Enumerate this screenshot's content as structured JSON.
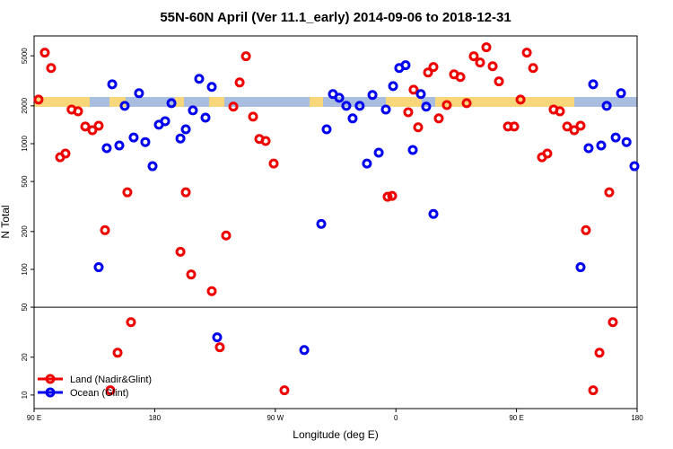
{
  "chart_data": {
    "type": "scatter",
    "title": "55N-60N April (Ver 11.1_early)   2014-09-06 to 2018-12-31",
    "x_label": "Longitude (deg E)",
    "y_label": "N Total",
    "log_y": true,
    "hline": 50,
    "legend": "bottom-left",
    "xlim": [
      90,
      540
    ],
    "xticks": [
      {
        "value": 90,
        "label": "90 E"
      },
      180,
      {
        "value": 270,
        "label": "90 W"
      },
      {
        "value": 360,
        "label": "0"
      },
      {
        "value": 450,
        "label": "90 E"
      },
      {
        "value": 540,
        "label": "180"
      }
    ],
    "ylim": [
      7.8,
      7200
    ],
    "yticks": [
      10,
      20,
      50,
      100,
      200,
      500,
      1000,
      2000,
      5000
    ],
    "series": [
      {
        "name": "Land (Nadir&Glint)",
        "color": "#ee0000",
        "x": [
          93.3,
          98,
          102.7,
          109.4,
          113.4,
          118,
          122.8,
          128.2,
          133.5,
          138.2,
          142.9,
          146.9,
          152.3,
          159.6,
          162.3,
          199.2,
          203.2,
          207.2,
          222.6,
          228.6,
          233.3,
          238.7,
          243.4,
          248.1,
          253.4,
          258.1,
          262.8,
          268.8,
          276.8,
          353.8,
          357.2,
          369.2,
          373.2,
          376.6,
          384,
          388,
          392,
          398,
          403.4,
          408.1,
          412.8,
          418.1,
          422.8,
          427.5,
          432.2,
          436.9,
          443.6,
          448.3,
          453,
          457.7,
          462.4,
          469,
          473,
          477.7,
          482.4,
          487.8,
          493.1,
          497.8,
          501.8,
          507.2,
          511.9,
          519.2,
          521.9
        ],
        "values": [
          2245,
          5300,
          4000,
          780,
          834,
          1870,
          1810,
          1370,
          1280,
          1390,
          205,
          10.9,
          21.7,
          410,
          38,
          138,
          410,
          91,
          67,
          24,
          186,
          1970,
          3070,
          4960,
          1640,
          1090,
          1050,
          695,
          10.9,
          378,
          384,
          1780,
          2690,
          1350,
          3680,
          4070,
          1590,
          2030,
          3560,
          3390,
          2100,
          4960,
          4420,
          5850,
          4130,
          3130,
          1370,
          1370,
          2245,
          5300,
          4000,
          780,
          834,
          1870,
          1810,
          1370,
          1280,
          1390,
          205,
          10.9,
          21.7,
          410,
          38
        ]
      },
      {
        "name": "Ocean (Glint)",
        "color": "#0000ee",
        "x": [
          138.2,
          144.2,
          148.3,
          153.6,
          157.6,
          164.3,
          168.3,
          173,
          178.4,
          183.1,
          187.8,
          192.5,
          199.2,
          203.2,
          208.5,
          213.2,
          217.9,
          222.6,
          226.6,
          291.6,
          304.3,
          308.3,
          313,
          317.7,
          323,
          327.7,
          333,
          338.4,
          342.5,
          347.2,
          352.5,
          357.9,
          362.5,
          367.2,
          372.6,
          378.6,
          382.6,
          388,
          497.8,
          503.8,
          507.2,
          513.2,
          517.3,
          524,
          528,
          532.1,
          538
        ],
        "values": [
          104,
          921,
          2970,
          968,
          2000,
          1120,
          2520,
          1030,
          662,
          1415,
          1510,
          2100,
          1100,
          1300,
          1840,
          3280,
          1610,
          2830,
          28.8,
          22.8,
          230,
          1300,
          2480,
          2320,
          2000,
          1590,
          2000,
          695,
          2440,
          848,
          1870,
          2870,
          4000,
          4210,
          891,
          2480,
          1970,
          276,
          104,
          921,
          2970,
          968,
          2000,
          1120,
          2520,
          1030,
          662
        ]
      }
    ]
  }
}
